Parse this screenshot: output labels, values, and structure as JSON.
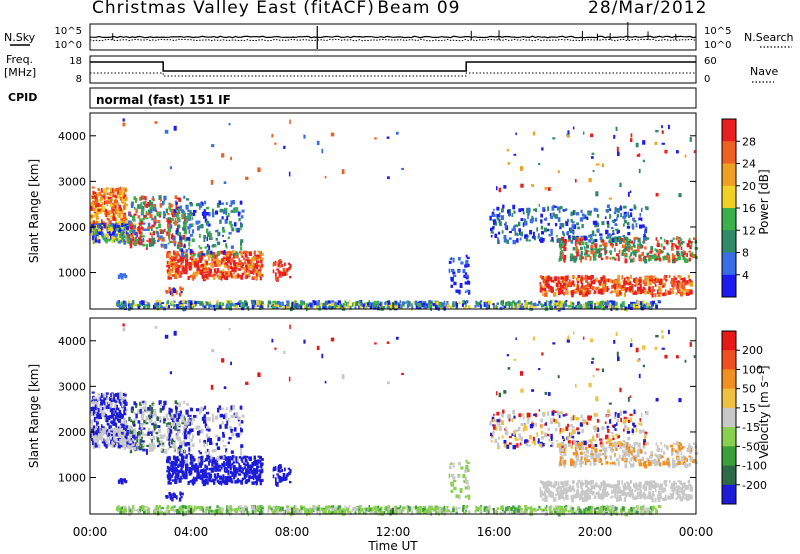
{
  "header": {
    "title": "Christmas Valley East (fitACF)",
    "beam": "Beam 09",
    "date": "28/Mar/2012"
  },
  "top_panels": {
    "nsky_label": "N.Sky",
    "nsearch_label": "N.Search",
    "noise_tick_high": "10^5",
    "noise_tick_low": "10^0",
    "freq_label_line1": "Freq.",
    "freq_label_line2": "[MHz]",
    "freq_tick_high": "18",
    "freq_tick_low": "8",
    "nave_label": "Nave",
    "nave_tick_high": "60",
    "nave_tick_low": "0",
    "cpid_label": "CPID",
    "cpid_text": "normal (fast) 151 IF"
  },
  "chart_data": [
    {
      "type": "heatmap",
      "name": "power",
      "ylabel": "Slant Range [km]",
      "xlabel": "",
      "x_range_hours": [
        0,
        24
      ],
      "y_range_km": [
        200,
        4500
      ],
      "yticks": [
        1000,
        2000,
        3000,
        4000
      ],
      "colorbar": {
        "label": "Power [dB]",
        "ticks": [
          "28",
          "24",
          "20",
          "16",
          "12",
          "8",
          "4"
        ],
        "colors": [
          "#1c1cf0",
          "#3a6ee8",
          "#2f8a6a",
          "#3ab04a",
          "#f0d020",
          "#f0a020",
          "#f06020",
          "#e82020"
        ]
      }
    },
    {
      "type": "heatmap",
      "name": "velocity",
      "ylabel": "Slant Range [km]",
      "xlabel": "Time UT",
      "x_range_hours": [
        0,
        24
      ],
      "y_range_km": [
        200,
        4500
      ],
      "yticks": [
        1000,
        2000,
        3000,
        4000
      ],
      "xticks": [
        "00:00",
        "04:00",
        "08:00",
        "12:00",
        "16:00",
        "20:00",
        "00:00"
      ],
      "colorbar": {
        "label": "Velocity [m s⁻¹]",
        "ticks": [
          "200",
          "100",
          "50",
          "15",
          "-15",
          "-50",
          "-100",
          "-200"
        ],
        "colors": [
          "#1c1cd8",
          "#2f6a46",
          "#3aa03a",
          "#8ad050",
          "#c8c8c8",
          "#f0c040",
          "#f09020",
          "#f05020",
          "#e81818"
        ]
      }
    }
  ]
}
